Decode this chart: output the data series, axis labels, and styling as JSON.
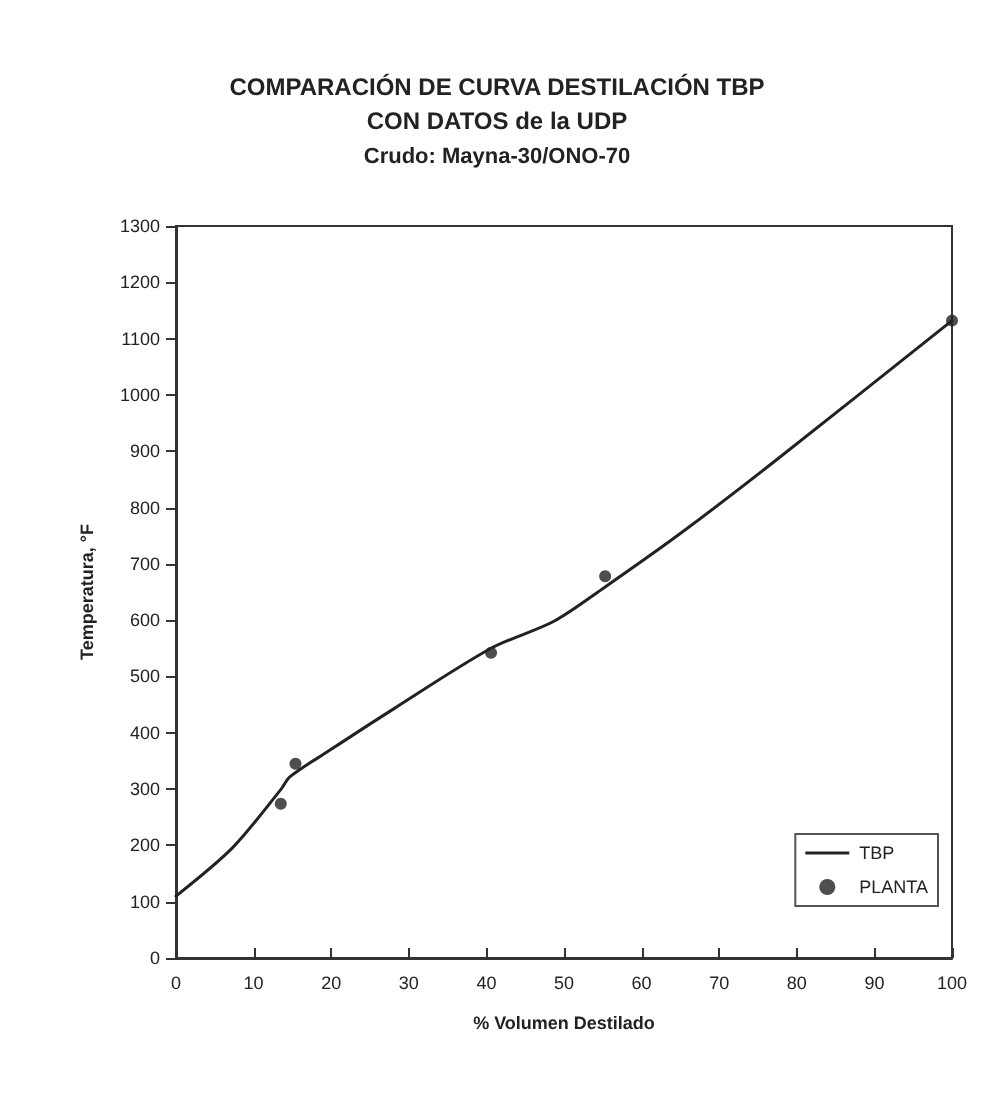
{
  "chart_data": {
    "type": "line",
    "title": "COMPARACIÓN DE CURVA DESTILACIÓN TBP\nCON DATOS de la UDP",
    "subtitle": "Crudo: Mayna-30/ONO-70",
    "xlabel": "% Volumen Destilado",
    "ylabel": "Temperatura, °F",
    "xlim": [
      0,
      100
    ],
    "xticks": [
      0,
      10,
      20,
      30,
      40,
      50,
      60,
      70,
      80,
      90,
      100
    ],
    "ylim": [
      0,
      1300
    ],
    "yticks": [
      0,
      100,
      200,
      300,
      400,
      500,
      600,
      700,
      800,
      900,
      1000,
      1100,
      1200,
      1300
    ],
    "grid": false,
    "legend": "bottom right",
    "series": [
      {
        "name": "TBP",
        "color": "#222222",
        "marker": "none",
        "line_style": "solid",
        "x": [
          0,
          7.3,
          13.5,
          14.7,
          19.7,
          28,
          40.6,
          48.7,
          55.3,
          65.2,
          77.6,
          100
        ],
        "values": [
          110,
          196,
          299,
          322,
          368,
          442,
          550,
          598,
          659,
          756,
          887,
          1132
        ]
      },
      {
        "name": "PLANTA",
        "type": "scatter",
        "color": "#222222",
        "marker": "circle",
        "x": [
          13.5,
          15.4,
          40.6,
          55.3,
          100
        ],
        "values": [
          274,
          345,
          542,
          678,
          1132
        ]
      }
    ]
  }
}
